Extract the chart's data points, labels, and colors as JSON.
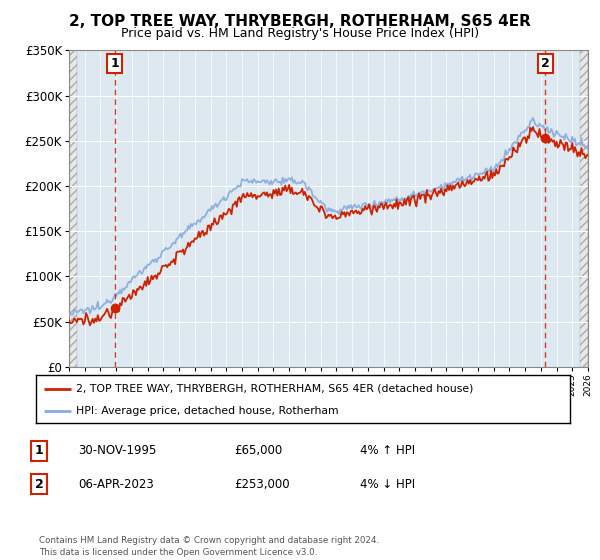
{
  "title": "2, TOP TREE WAY, THRYBERGH, ROTHERHAM, S65 4ER",
  "subtitle": "Price paid vs. HM Land Registry's House Price Index (HPI)",
  "ylim": [
    0,
    350000
  ],
  "yticks": [
    0,
    50000,
    100000,
    150000,
    200000,
    250000,
    300000,
    350000
  ],
  "ytick_labels": [
    "£0",
    "£50K",
    "£100K",
    "£150K",
    "£200K",
    "£250K",
    "£300K",
    "£350K"
  ],
  "x_start_year": 1993,
  "x_end_year": 2026,
  "point1_year": 1995.92,
  "point1_value": 65000,
  "point1_label": "1",
  "point2_year": 2023.27,
  "point2_value": 253000,
  "point2_label": "2",
  "red_line_color": "#cc2200",
  "blue_line_color": "#88aadd",
  "chart_bg_color": "#dde8f0",
  "hatch_bg_color": "#e8e8e8",
  "legend_line1": "2, TOP TREE WAY, THRYBERGH, ROTHERHAM, S65 4ER (detached house)",
  "legend_line2": "HPI: Average price, detached house, Rotherham",
  "table_row1_num": "1",
  "table_row1_date": "30-NOV-1995",
  "table_row1_price": "£65,000",
  "table_row1_hpi": "4% ↑ HPI",
  "table_row2_num": "2",
  "table_row2_date": "06-APR-2023",
  "table_row2_price": "£253,000",
  "table_row2_hpi": "4% ↓ HPI",
  "footer": "Contains HM Land Registry data © Crown copyright and database right 2024.\nThis data is licensed under the Open Government Licence v3.0.",
  "background_color": "#ffffff"
}
